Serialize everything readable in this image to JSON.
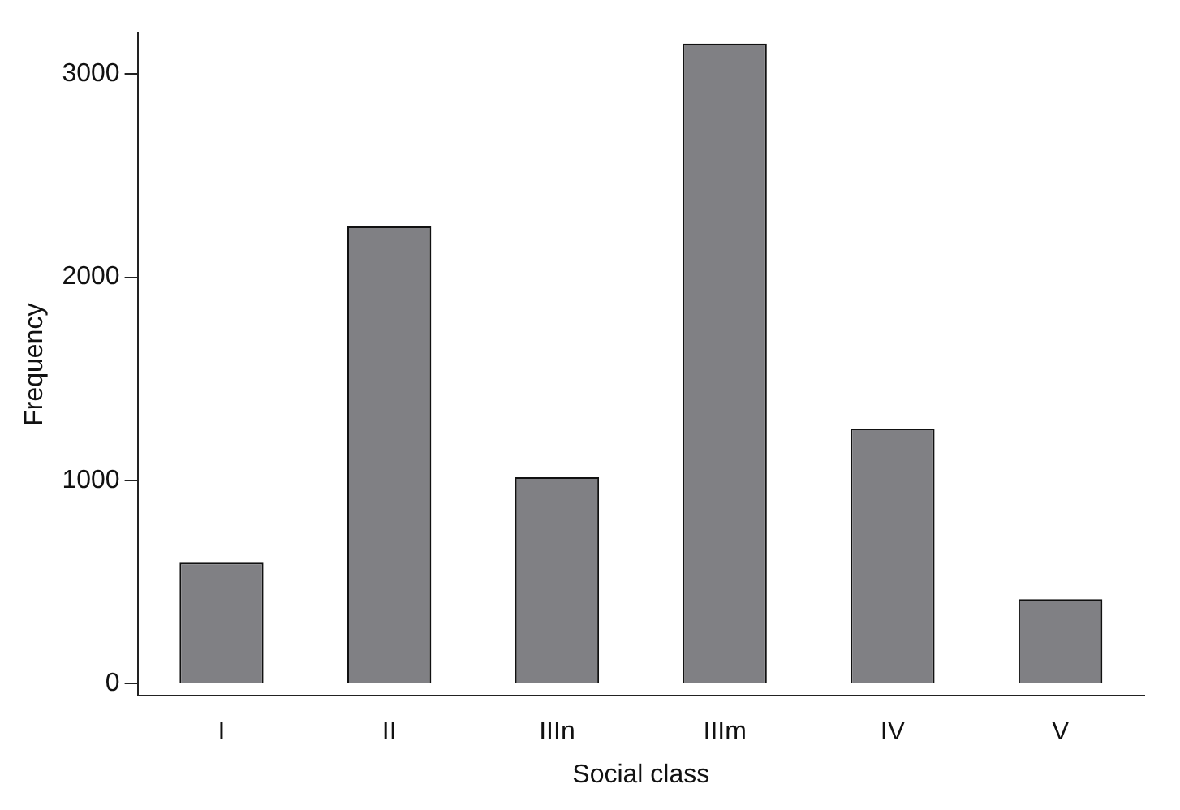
{
  "chart_data": {
    "type": "bar",
    "xlabel": "Social class",
    "ylabel": "Frequency",
    "categories": [
      "I",
      "II",
      "IIIn",
      "IIIm",
      "IV",
      "V"
    ],
    "values": [
      595,
      2250,
      1015,
      3150,
      1255,
      415
    ],
    "color": "#808084",
    "ylim": [
      -60,
      3200
    ],
    "yticks": [
      0,
      1000,
      2000,
      3000
    ],
    "grid": false,
    "legend": false
  }
}
